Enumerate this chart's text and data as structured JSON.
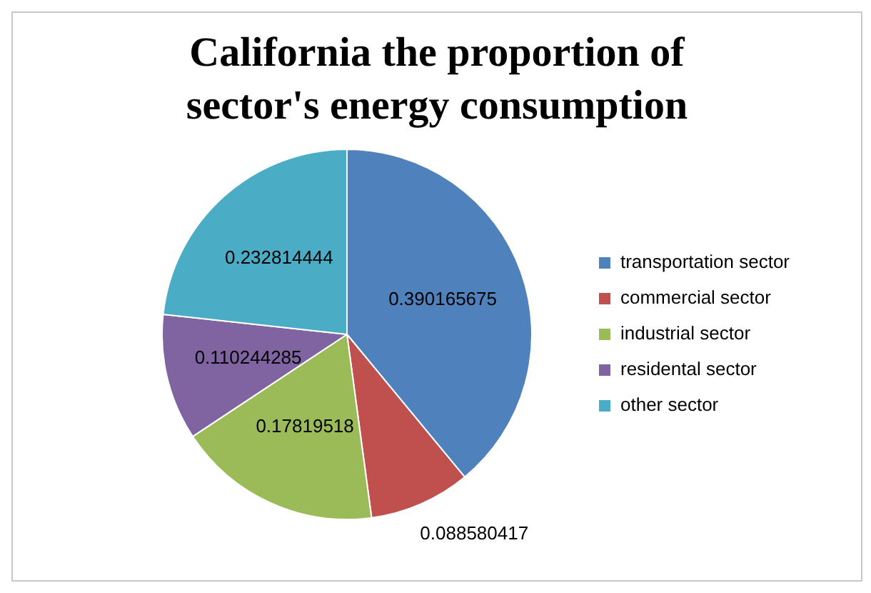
{
  "chart_data": {
    "type": "pie",
    "title": "California the proportion of sector's energy consumption",
    "categories": [
      "transportation sector",
      "commercial sector",
      "industrial sector",
      "residental sector",
      "other sector"
    ],
    "values": [
      0.390165675,
      0.088580417,
      0.17819518,
      0.110244285,
      0.232814444
    ],
    "colors": [
      "#4f81bd",
      "#c0504d",
      "#9bbb59",
      "#8064a2",
      "#4bacc6"
    ],
    "data_labels": true,
    "legend": "right"
  }
}
